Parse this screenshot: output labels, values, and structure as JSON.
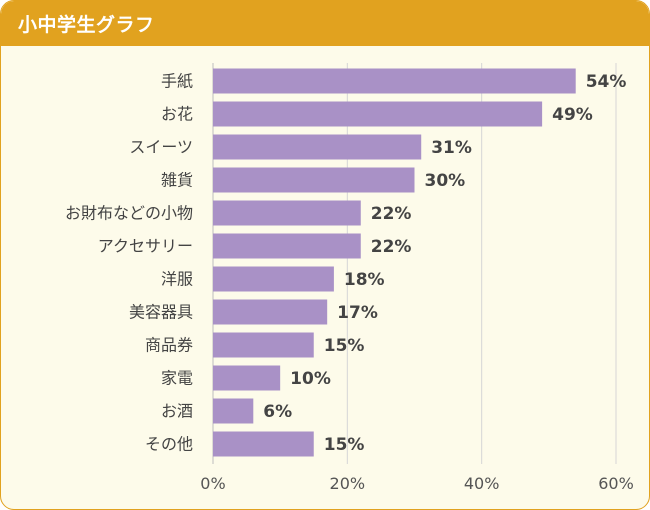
{
  "header": {
    "title": "小中学生グラフ"
  },
  "chart_data": {
    "type": "bar",
    "orientation": "horizontal",
    "title": "小中学生グラフ",
    "categories": [
      "手紙",
      "お花",
      "スイーツ",
      "雑貨",
      "お財布などの小物",
      "アクセサリー",
      "洋服",
      "美容器具",
      "商品券",
      "家電",
      "お酒",
      "その他"
    ],
    "values": [
      54,
      49,
      31,
      30,
      22,
      22,
      18,
      17,
      15,
      10,
      6,
      15
    ],
    "value_labels": [
      "54%",
      "49%",
      "31%",
      "30%",
      "22%",
      "22%",
      "18%",
      "17%",
      "15%",
      "10%",
      "6%",
      "15%"
    ],
    "xlim": [
      0,
      60
    ],
    "xticks": [
      0,
      20,
      40,
      60
    ],
    "xtick_labels": [
      "0%",
      "20%",
      "40%",
      "60%"
    ],
    "xlabel": "",
    "ylabel": "",
    "grid": "vertical",
    "legend": "none",
    "colors": {
      "bar": "#a991c6",
      "header": "#e1a21f",
      "background": "#fdfbea",
      "grid": "#d6d6d6",
      "text": "#444444"
    }
  }
}
